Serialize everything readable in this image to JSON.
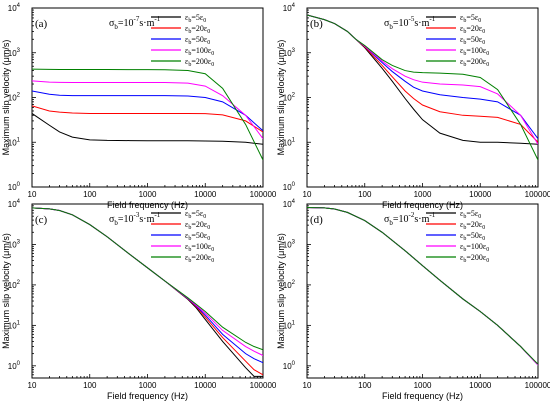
{
  "chart_data": [
    {
      "type": "line",
      "panel_label": "(a)",
      "annotation": {
        "prefix": "σ",
        "sub": "b",
        "rest": "=10",
        "exp": "-7",
        "unit": "s·m",
        "unit_exp": "-1"
      },
      "xlabel": "Field frequency (Hz)",
      "ylabel": "Maximum slip velocity (μm/s)",
      "xscale": "log",
      "yscale": "log",
      "xlim": [
        10,
        100000
      ],
      "ylim": [
        1,
        10000
      ],
      "xticks": [
        "10",
        "100",
        "1000",
        "10000",
        "100000"
      ],
      "yticks": [
        {
          "base": "10",
          "exp": "0"
        },
        {
          "base": "10",
          "exp": "1"
        },
        {
          "base": "10",
          "exp": "2"
        },
        {
          "base": "10",
          "exp": "3"
        },
        {
          "base": "10",
          "exp": "4"
        }
      ],
      "legend_position": "top-right",
      "x": [
        10,
        20,
        30,
        50,
        100,
        200,
        500,
        1000,
        2000,
        5000,
        10000,
        20000,
        50000,
        100000
      ],
      "series": [
        {
          "name": "εb=5ε0",
          "color": "#000000",
          "values": [
            44,
            24,
            17,
            13,
            11.3,
            11,
            10.9,
            10.8,
            10.8,
            10.8,
            10.7,
            10.5,
            10,
            9
          ]
        },
        {
          "name": "εb=20ε0",
          "color": "#ff0000",
          "values": [
            65,
            50,
            47,
            45,
            44,
            44,
            44,
            44,
            44,
            44,
            43.5,
            41,
            30,
            17
          ]
        },
        {
          "name": "εb=50ε0",
          "color": "#0000ff",
          "values": [
            140,
            118,
            112,
            110,
            110,
            110,
            110,
            110,
            110,
            108,
            100,
            80,
            40,
            18
          ]
        },
        {
          "name": "εb=100ε0",
          "color": "#ff00ff",
          "values": [
            235,
            220,
            218,
            217,
            217,
            217,
            217,
            217,
            216,
            210,
            180,
            110,
            40,
            12
          ]
        },
        {
          "name": "εb=200ε0",
          "color": "#008000",
          "values": [
            430,
            425,
            423,
            422,
            421,
            421,
            420,
            420,
            418,
            400,
            340,
            160,
            25,
            4
          ]
        }
      ]
    },
    {
      "type": "line",
      "panel_label": "(b)",
      "annotation": {
        "prefix": "σ",
        "sub": "b",
        "rest": "=10",
        "exp": "-5",
        "unit": "s·m",
        "unit_exp": "-1"
      },
      "xlabel": "Field frequency (Hz)",
      "ylabel": "Maximum slip velocity (μm/s)",
      "xscale": "log",
      "yscale": "log",
      "xlim": [
        10,
        100000
      ],
      "ylim": [
        1,
        10000
      ],
      "xticks": [
        "10",
        "100",
        "1000",
        "10000",
        "100000"
      ],
      "yticks": [
        {
          "base": "10",
          "exp": "0"
        },
        {
          "base": "10",
          "exp": "1"
        },
        {
          "base": "10",
          "exp": "2"
        },
        {
          "base": "10",
          "exp": "3"
        },
        {
          "base": "10",
          "exp": "4"
        }
      ],
      "legend_position": "top-right",
      "x": [
        10,
        20,
        30,
        50,
        70,
        100,
        200,
        300,
        500,
        700,
        1000,
        2000,
        5000,
        10000,
        20000,
        50000,
        100000
      ],
      "series": [
        {
          "name": "εb=5ε0",
          "color": "#000000",
          "values": [
            7000,
            5500,
            4500,
            3000,
            2000,
            1300,
            450,
            230,
            95,
            55,
            32,
            16,
            11,
            10,
            10,
            9.5,
            9
          ]
        },
        {
          "name": "εb=20ε0",
          "color": "#ff0000",
          "values": [
            7000,
            5500,
            4500,
            3000,
            2000,
            1350,
            520,
            290,
            140,
            95,
            68,
            48,
            40,
            38,
            36,
            25,
            10
          ]
        },
        {
          "name": "εb=50ε0",
          "color": "#0000ff",
          "values": [
            7000,
            5500,
            4500,
            3000,
            2000,
            1400,
            600,
            380,
            230,
            170,
            140,
            115,
            100,
            92,
            80,
            40,
            12
          ]
        },
        {
          "name": "εb=100ε0",
          "color": "#ff00ff",
          "values": [
            7000,
            5500,
            4500,
            3000,
            2000,
            1400,
            650,
            440,
            300,
            250,
            220,
            200,
            190,
            175,
            120,
            40,
            9
          ]
        },
        {
          "name": "εb=200ε0",
          "color": "#008000",
          "values": [
            7000,
            5500,
            4500,
            3000,
            2000,
            1450,
            700,
            520,
            400,
            370,
            360,
            350,
            330,
            280,
            150,
            25,
            4
          ]
        }
      ]
    },
    {
      "type": "line",
      "panel_label": "(c)",
      "annotation": {
        "prefix": "σ",
        "sub": "b",
        "rest": "=10",
        "exp": "-3",
        "unit": "s·m",
        "unit_exp": "-1"
      },
      "xlabel": "Field frequency (Hz)",
      "ylabel": "Maximum slip velocity (μm/s)",
      "xscale": "log",
      "yscale": "log",
      "xlim": [
        10,
        100000
      ],
      "ylim": [
        0.5,
        10000
      ],
      "xticks": [
        "10",
        "100",
        "1000",
        "10000",
        "100000"
      ],
      "yticks": [
        {
          "base": "10",
          "exp": "0"
        },
        {
          "base": "10",
          "exp": "1"
        },
        {
          "base": "10",
          "exp": "2"
        },
        {
          "base": "10",
          "exp": "3"
        },
        {
          "base": "10",
          "exp": "4"
        }
      ],
      "legend_position": "top-right",
      "x": [
        10,
        20,
        30,
        50,
        100,
        200,
        500,
        1000,
        2000,
        5000,
        7000,
        10000,
        20000,
        50000,
        70000,
        100000
      ],
      "series": [
        {
          "name": "εb=5ε0",
          "color": "#000000",
          "values": [
            8000,
            7600,
            6900,
            5400,
            3100,
            1550,
            560,
            265,
            125,
            44,
            27,
            14,
            4,
            0.9,
            0.55,
            0.55
          ]
        },
        {
          "name": "εb=20ε0",
          "color": "#ff0000",
          "values": [
            8000,
            7600,
            6900,
            5400,
            3100,
            1550,
            560,
            265,
            125,
            45,
            29,
            16,
            5,
            1.3,
            0.8,
            0.6
          ]
        },
        {
          "name": "εb=50ε0",
          "color": "#0000ff",
          "values": [
            8000,
            7600,
            6900,
            5400,
            3100,
            1550,
            560,
            265,
            125,
            46,
            30,
            18,
            6,
            2,
            1.5,
            1.2
          ]
        },
        {
          "name": "εb=100ε0",
          "color": "#ff00ff",
          "values": [
            8000,
            7600,
            6900,
            5400,
            3100,
            1550,
            560,
            265,
            125,
            47,
            31,
            20,
            7.5,
            3,
            2.3,
            1.8
          ]
        },
        {
          "name": "εb=200ε0",
          "color": "#008000",
          "values": [
            8000,
            7600,
            6900,
            5400,
            3100,
            1550,
            560,
            265,
            125,
            48,
            33,
            22,
            9,
            3.8,
            3,
            2.5
          ]
        }
      ]
    },
    {
      "type": "line",
      "panel_label": "(d)",
      "annotation": {
        "prefix": "σ",
        "sub": "b",
        "rest": "=10",
        "exp": "-2",
        "unit": "s·m",
        "unit_exp": "-1"
      },
      "xlabel": "Field frequency (Hz)",
      "ylabel": "Maximum slip velocity (μm/s)",
      "xscale": "log",
      "yscale": "log",
      "xlim": [
        10,
        100000
      ],
      "ylim": [
        0.5,
        10000
      ],
      "xticks": [
        "10",
        "100",
        "1000",
        "10000",
        "100000"
      ],
      "yticks": [
        {
          "base": "10",
          "exp": "0"
        },
        {
          "base": "10",
          "exp": "1"
        },
        {
          "base": "10",
          "exp": "2"
        },
        {
          "base": "10",
          "exp": "3"
        },
        {
          "base": "10",
          "exp": "4"
        }
      ],
      "legend_position": "top-right",
      "x": [
        10,
        20,
        30,
        50,
        100,
        200,
        500,
        1000,
        2000,
        5000,
        10000,
        20000,
        50000,
        100000
      ],
      "series": [
        {
          "name": "εb=5ε0",
          "color": "#000000",
          "values": [
            8200,
            8000,
            7500,
            6200,
            3900,
            2000,
            700,
            300,
            130,
            45,
            22,
            10,
            3,
            1.05
          ]
        },
        {
          "name": "εb=20ε0",
          "color": "#ff0000",
          "values": [
            8200,
            8000,
            7500,
            6200,
            3900,
            2000,
            700,
            300,
            130,
            45,
            22,
            10,
            3,
            1.05
          ]
        },
        {
          "name": "εb=50ε0",
          "color": "#0000ff",
          "values": [
            8200,
            8000,
            7500,
            6200,
            3900,
            2000,
            700,
            300,
            130,
            45,
            22,
            10,
            3,
            1.05
          ]
        },
        {
          "name": "εb=100ε0",
          "color": "#ff00ff",
          "values": [
            8200,
            8000,
            7500,
            6200,
            3900,
            2000,
            700,
            300,
            130,
            45,
            22,
            10,
            3,
            1.05
          ]
        },
        {
          "name": "εb=200ε0",
          "color": "#008000",
          "values": [
            8200,
            8000,
            7500,
            6200,
            3900,
            2000,
            700,
            300,
            130,
            45,
            22,
            10,
            3,
            1.1
          ]
        }
      ]
    }
  ]
}
